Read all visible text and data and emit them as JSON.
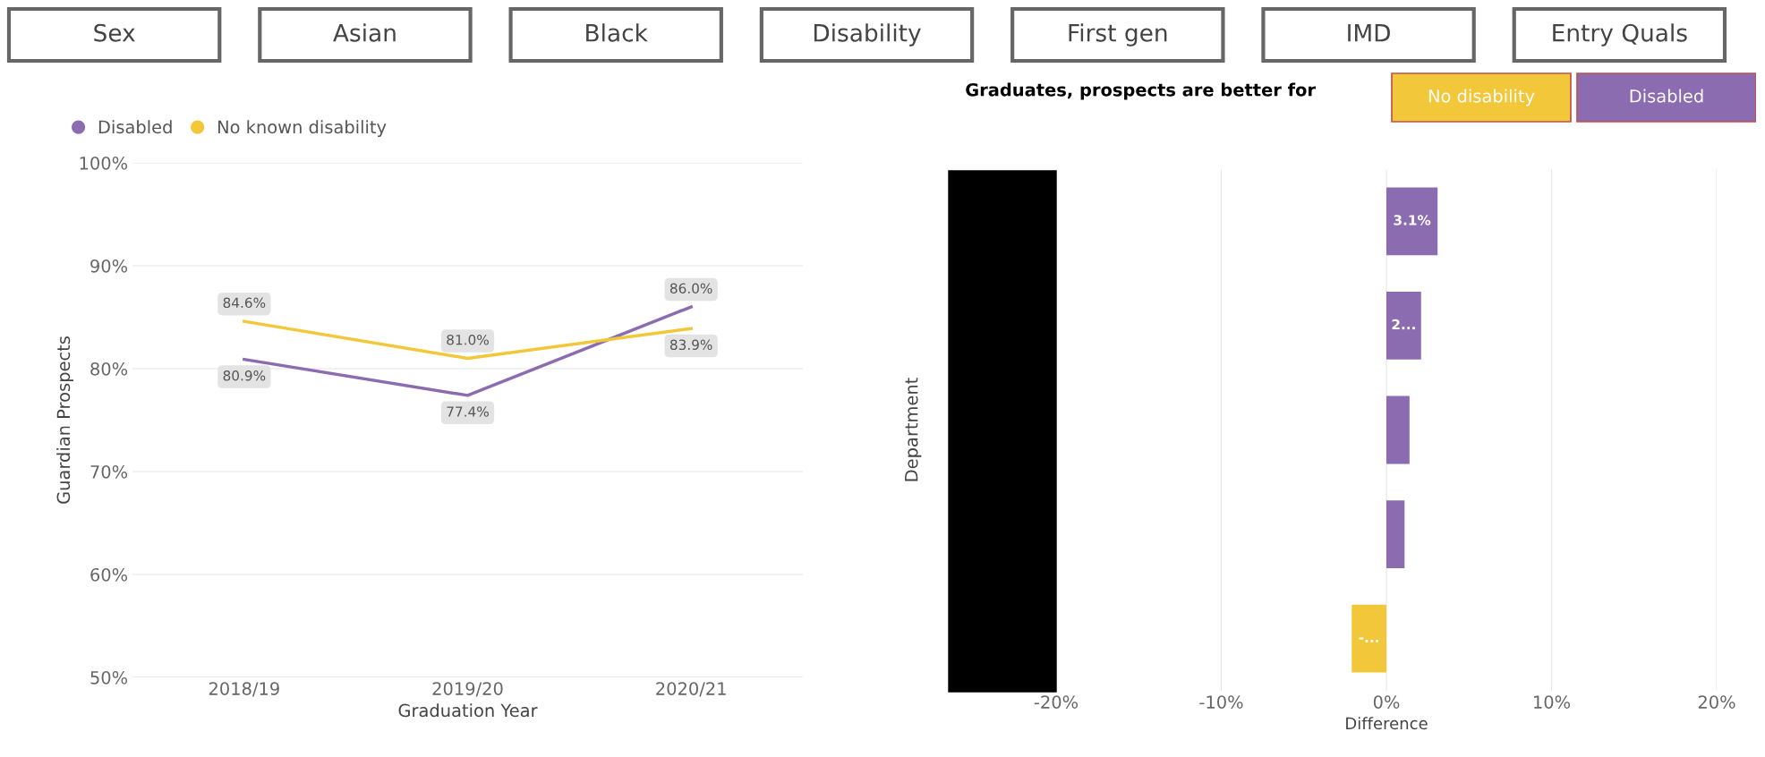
{
  "chart_data": [
    {
      "type": "other",
      "annotations": [
        "Sex",
        "Asian",
        "Black",
        "Disability",
        "First gen",
        "IMD",
        "Entry Quals"
      ]
    },
    {
      "type": "line",
      "xlabel": "Graduation Year",
      "ylabel": "Guardian Prospects",
      "categories": [
        "2018/19",
        "2019/20",
        "2020/21"
      ],
      "series": [
        {
          "name": "Disabled",
          "color": "#8c6cb0",
          "values": [
            80.9,
            77.4,
            86.0
          ],
          "value_labels": [
            "80.9%",
            "77.4%",
            "86.0%"
          ]
        },
        {
          "name": "No known disability",
          "color": "#f2c83a",
          "values": [
            84.6,
            81.0,
            83.9
          ],
          "value_labels": [
            "84.6%",
            "81.0%",
            "83.9%"
          ]
        }
      ],
      "ylim": [
        50,
        100
      ],
      "yticks": [
        {
          "value": 50,
          "label": "50%"
        },
        {
          "value": 60,
          "label": "60%"
        },
        {
          "value": 70,
          "label": "70%"
        },
        {
          "value": 80,
          "label": "80%"
        },
        {
          "value": 90,
          "label": "90%"
        },
        {
          "value": 100,
          "label": "100%"
        }
      ],
      "grid": "y",
      "legend": "top left",
      "marker": "none",
      "line_style": "solid"
    },
    {
      "type": "bar",
      "orientation": "horizontal",
      "xlabel": "Difference",
      "ylabel": "Department",
      "legend_title": "Graduates, prospects are better for",
      "categories": [
        null,
        null,
        null,
        null,
        null
      ],
      "series": [
        {
          "name": "No disability",
          "color": "#f2c83a",
          "values": [
            null,
            null,
            null,
            null,
            -2.1
          ],
          "value_labels": [
            null,
            null,
            null,
            null,
            "-..."
          ]
        },
        {
          "name": "Disabled",
          "color": "#8c6cb0",
          "values": [
            3.1,
            2.1,
            1.4,
            1.1,
            null
          ],
          "value_labels": [
            "3.1%",
            "2...",
            null,
            null,
            null
          ]
        }
      ],
      "xlim": [
        -20,
        20
      ],
      "xticks": [
        {
          "value": -20,
          "label": "-20%"
        },
        {
          "value": -10,
          "label": "-10%"
        },
        {
          "value": 0,
          "label": "0%"
        },
        {
          "value": 10,
          "label": "10%"
        },
        {
          "value": 20,
          "label": "20%"
        }
      ],
      "grid": "x",
      "legend": "top right"
    }
  ]
}
